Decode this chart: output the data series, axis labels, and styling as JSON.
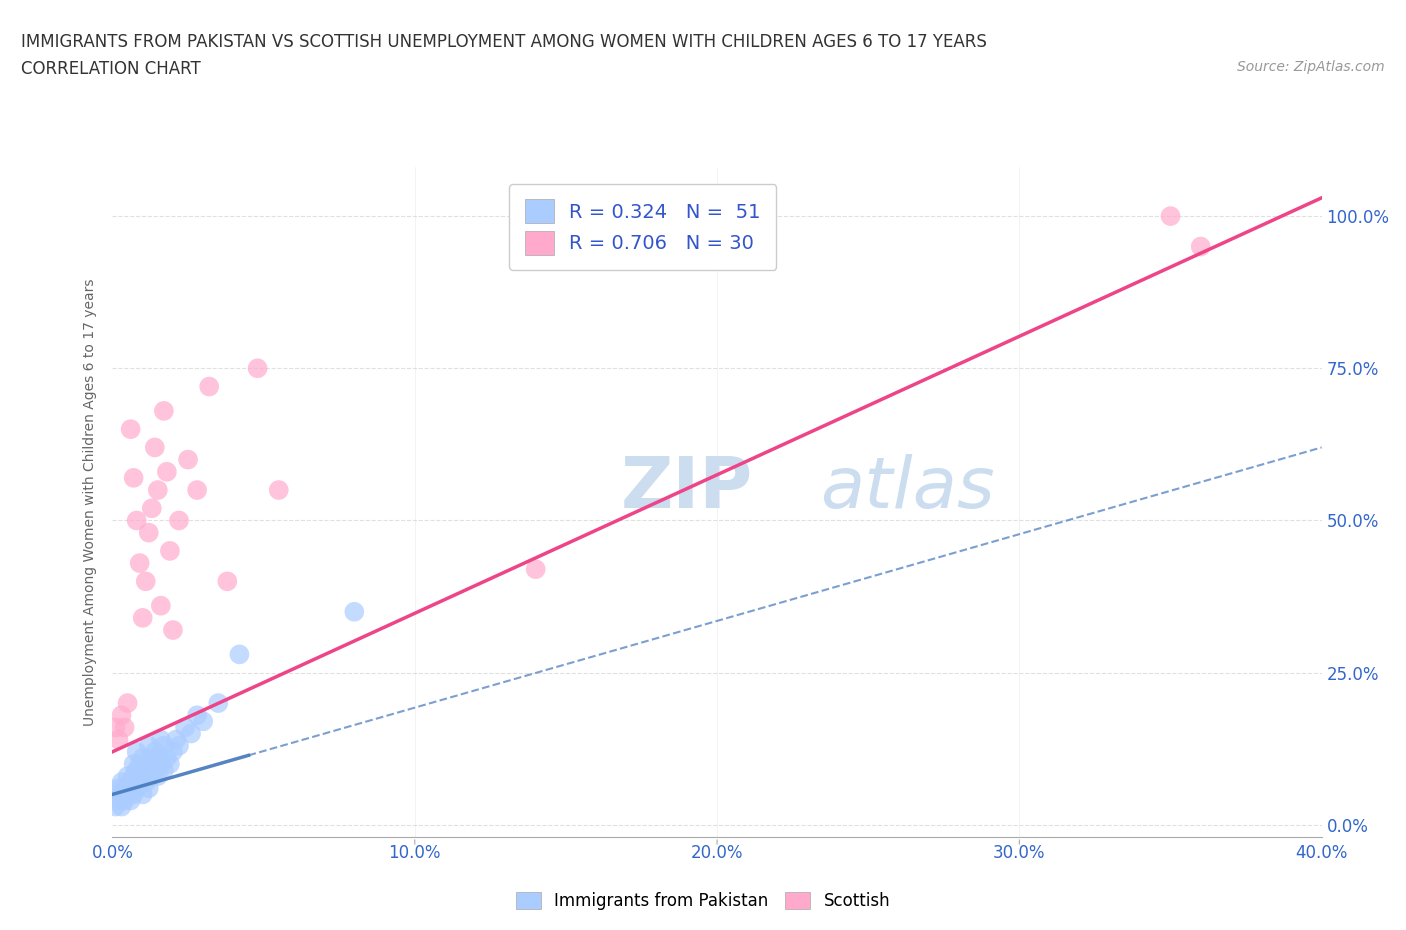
{
  "title_line1": "IMMIGRANTS FROM PAKISTAN VS SCOTTISH UNEMPLOYMENT AMONG WOMEN WITH CHILDREN AGES 6 TO 17 YEARS",
  "title_line2": "CORRELATION CHART",
  "source_text": "Source: ZipAtlas.com",
  "ylabel": "Unemployment Among Women with Children Ages 6 to 17 years",
  "xlim": [
    0.0,
    0.4
  ],
  "ylim": [
    -0.02,
    1.08
  ],
  "xtick_labels": [
    "0.0%",
    "",
    "",
    "",
    "10.0%",
    "",
    "",
    "",
    "20.0%",
    "",
    "",
    "",
    "30.0%",
    "",
    "",
    "",
    "40.0%"
  ],
  "xtick_values": [
    0.0,
    0.025,
    0.05,
    0.075,
    0.1,
    0.125,
    0.15,
    0.175,
    0.2,
    0.225,
    0.25,
    0.275,
    0.3,
    0.325,
    0.35,
    0.375,
    0.4
  ],
  "ytick_labels": [
    "0.0%",
    "25.0%",
    "50.0%",
    "75.0%",
    "100.0%"
  ],
  "ytick_values": [
    0.0,
    0.25,
    0.5,
    0.75,
    1.0
  ],
  "background_color": "#ffffff",
  "grid_color": "#dddddd",
  "grid_linestyle": "--",
  "pakistan_color": "#aaccff",
  "scottish_color": "#ffaacc",
  "pakistan_line_color": "#4477bb",
  "scottish_line_color": "#ee4488",
  "legend_text1": "R = 0.324   N =  51",
  "legend_text2": "R = 0.706   N = 30",
  "watermark_zip": "ZIP",
  "watermark_atlas": "atlas",
  "watermark_color": "#ccddf0",
  "pakistan_x": [
    0.001,
    0.001,
    0.002,
    0.002,
    0.003,
    0.003,
    0.003,
    0.004,
    0.004,
    0.005,
    0.005,
    0.006,
    0.006,
    0.007,
    0.007,
    0.007,
    0.008,
    0.008,
    0.008,
    0.009,
    0.009,
    0.01,
    0.01,
    0.01,
    0.011,
    0.011,
    0.012,
    0.012,
    0.012,
    0.013,
    0.013,
    0.014,
    0.014,
    0.015,
    0.015,
    0.016,
    0.016,
    0.017,
    0.017,
    0.018,
    0.019,
    0.02,
    0.021,
    0.022,
    0.024,
    0.026,
    0.028,
    0.03,
    0.035,
    0.042,
    0.08
  ],
  "pakistan_y": [
    0.03,
    0.05,
    0.04,
    0.06,
    0.03,
    0.05,
    0.07,
    0.04,
    0.06,
    0.05,
    0.08,
    0.04,
    0.07,
    0.05,
    0.08,
    0.1,
    0.06,
    0.09,
    0.12,
    0.07,
    0.1,
    0.05,
    0.08,
    0.11,
    0.07,
    0.09,
    0.06,
    0.1,
    0.13,
    0.08,
    0.11,
    0.09,
    0.12,
    0.08,
    0.11,
    0.1,
    0.14,
    0.09,
    0.13,
    0.11,
    0.1,
    0.12,
    0.14,
    0.13,
    0.16,
    0.15,
    0.18,
    0.17,
    0.2,
    0.28,
    0.35
  ],
  "scottish_x": [
    0.001,
    0.002,
    0.003,
    0.004,
    0.005,
    0.006,
    0.007,
    0.008,
    0.009,
    0.01,
    0.011,
    0.012,
    0.013,
    0.014,
    0.015,
    0.016,
    0.017,
    0.018,
    0.019,
    0.02,
    0.022,
    0.025,
    0.028,
    0.032,
    0.038,
    0.048,
    0.055,
    0.14,
    0.35,
    0.36
  ],
  "scottish_y": [
    0.16,
    0.14,
    0.18,
    0.16,
    0.2,
    0.65,
    0.57,
    0.5,
    0.43,
    0.34,
    0.4,
    0.48,
    0.52,
    0.62,
    0.55,
    0.36,
    0.68,
    0.58,
    0.45,
    0.32,
    0.5,
    0.6,
    0.55,
    0.72,
    0.4,
    0.75,
    0.55,
    0.42,
    1.0,
    0.95
  ],
  "pk_line_x0": 0.0,
  "pk_line_y0": 0.05,
  "pk_line_x1": 0.4,
  "pk_line_y1": 0.62,
  "sc_line_x0": 0.0,
  "sc_line_y0": 0.12,
  "sc_line_x1": 0.4,
  "sc_line_y1": 1.03
}
